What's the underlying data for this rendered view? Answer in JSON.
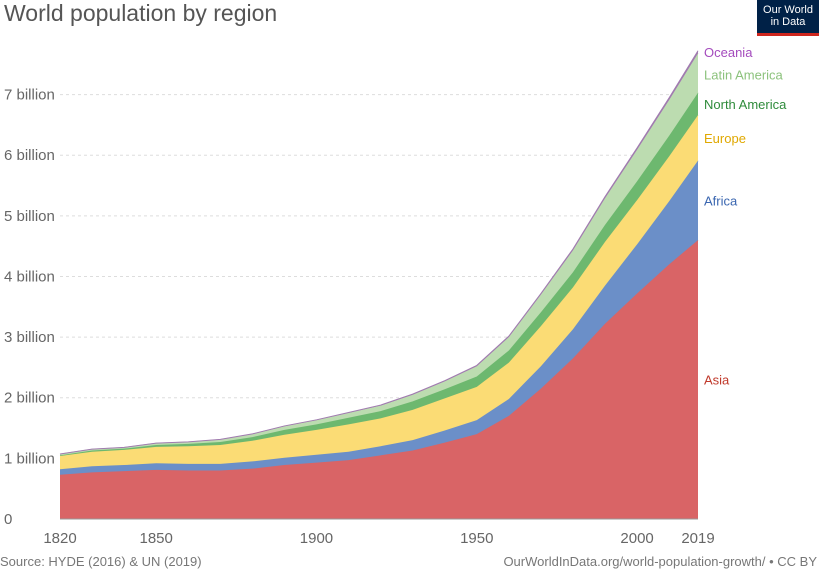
{
  "header": {
    "title": "World population by region",
    "logo_line1": "Our World",
    "logo_line2": "in Data"
  },
  "footer": {
    "source": "Source: HYDE (2016) & UN (2019)",
    "attribution": "OurWorldInData.org/world-population-growth/ • CC BY"
  },
  "chart_data": {
    "type": "area",
    "stacked": true,
    "title": "World population by region",
    "x": [
      1820,
      1830,
      1840,
      1850,
      1860,
      1870,
      1880,
      1890,
      1900,
      1910,
      1920,
      1930,
      1940,
      1950,
      1960,
      1970,
      1980,
      1990,
      2000,
      2010,
      2019
    ],
    "x_ticks": [
      "1820",
      "1850",
      "1900",
      "1950",
      "2000",
      "2019"
    ],
    "x_tick_values": [
      1820,
      1850,
      1900,
      1950,
      2000,
      2019
    ],
    "y_ticks": [
      "0",
      "1 billion",
      "2 billion",
      "3 billion",
      "4 billion",
      "5 billion",
      "6 billion",
      "7 billion"
    ],
    "y_tick_values": [
      0,
      1000000000,
      2000000000,
      3000000000,
      4000000000,
      5000000000,
      6000000000,
      7000000000
    ],
    "ylim": [
      0,
      7900000000
    ],
    "grid": "horizontal dashed",
    "legend": "right, inline labels",
    "series": [
      {
        "name": "Asia",
        "color": "#d35a5a",
        "fill": "#d96466",
        "values": [
          730000000.0,
          770000000.0,
          790000000.0,
          810000000.0,
          800000000.0,
          800000000.0,
          830000000.0,
          890000000.0,
          930000000.0,
          970000000.0,
          1050000000.0,
          1130000000.0,
          1260000000.0,
          1400000000.0,
          1700000000.0,
          2150000000.0,
          2650000000.0,
          3220000000.0,
          3720000000.0,
          4200000000.0,
          4600000000.0
        ]
      },
      {
        "name": "Africa",
        "color": "#3a66b0",
        "fill": "#6b8fc8",
        "values": [
          90000000.0,
          100000000.0,
          100000000.0,
          110000000.0,
          110000000.0,
          110000000.0,
          120000000.0,
          120000000.0,
          130000000.0,
          140000000.0,
          150000000.0,
          170000000.0,
          200000000.0,
          230000000.0,
          280000000.0,
          370000000.0,
          480000000.0,
          630000000.0,
          810000000.0,
          1040000000.0,
          1310000000.0
        ]
      },
      {
        "name": "Europe",
        "color": "#e8b92c",
        "fill": "#fbdc75",
        "values": [
          220000000.0,
          240000000.0,
          250000000.0,
          270000000.0,
          290000000.0,
          310000000.0,
          340000000.0,
          380000000.0,
          410000000.0,
          450000000.0,
          460000000.0,
          500000000.0,
          530000000.0,
          550000000.0,
          600000000.0,
          660000000.0,
          690000000.0,
          720000000.0,
          730000000.0,
          740000000.0,
          750000000.0
        ]
      },
      {
        "name": "North America",
        "color": "#3d9a43",
        "fill": "#6db86f",
        "values": [
          10000000.0,
          20000000.0,
          20000000.0,
          30000000.0,
          40000000.0,
          50000000.0,
          60000000.0,
          80000000.0,
          90000000.0,
          110000000.0,
          120000000.0,
          140000000.0,
          150000000.0,
          170000000.0,
          200000000.0,
          230000000.0,
          250000000.0,
          280000000.0,
          310000000.0,
          340000000.0,
          370000000.0
        ]
      },
      {
        "name": "Latin America",
        "color": "#9dcb8e",
        "fill": "#bcdcb0",
        "values": [
          20000000.0,
          20000000.0,
          20000000.0,
          30000000.0,
          30000000.0,
          40000000.0,
          50000000.0,
          60000000.0,
          70000000.0,
          80000000.0,
          90000000.0,
          110000000.0,
          130000000.0,
          170000000.0,
          220000000.0,
          290000000.0,
          360000000.0,
          440000000.0,
          520000000.0,
          590000000.0,
          650000000.0
        ]
      },
      {
        "name": "Oceania",
        "color": "#a44bbd",
        "fill": "#a17bb0",
        "values": [
          2000000.0,
          2000000.0,
          2000000.0,
          2000000.0,
          3000000.0,
          4000000.0,
          4000000.0,
          5000000.0,
          6000000.0,
          7000000.0,
          9000000.0,
          10000000.0,
          11000000.0,
          13000000.0,
          16000000.0,
          19000000.0,
          23000000.0,
          27000000.0,
          31000000.0,
          37000000.0,
          42000000.0
        ]
      }
    ],
    "label_colors": {
      "Asia": "#c0392b",
      "Africa": "#3a66b0",
      "Europe": "#e0a800",
      "North America": "#2e8b3a",
      "Latin America": "#8cc27c",
      "Oceania": "#a44bbd"
    }
  }
}
